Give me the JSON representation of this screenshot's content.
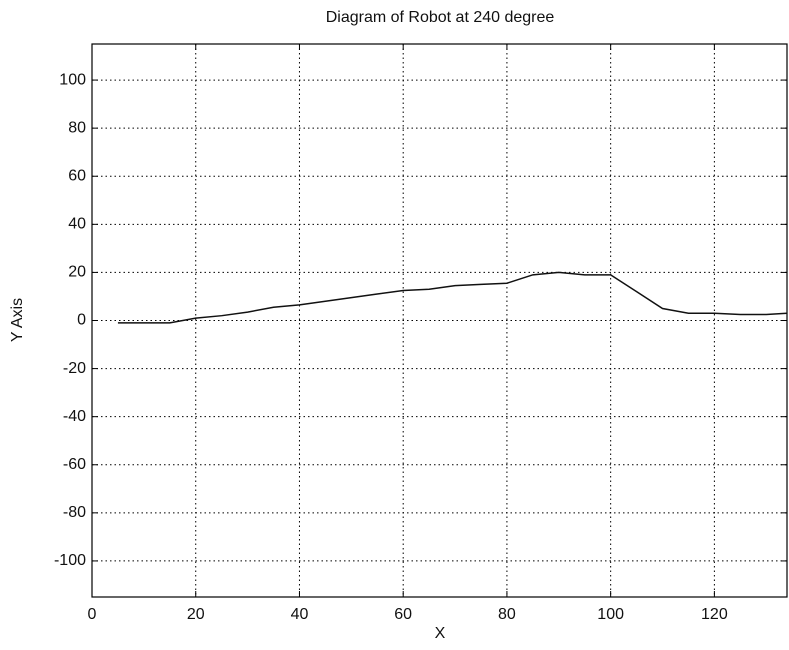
{
  "chart_data": {
    "type": "line",
    "title": "Diagram of Robot at 240 degree",
    "x_label": "X",
    "y_label": "Y Axis",
    "x": [
      5,
      10,
      15,
      20,
      25,
      30,
      35,
      40,
      45,
      50,
      55,
      60,
      65,
      70,
      75,
      80,
      85,
      90,
      95,
      100,
      105,
      110,
      115,
      120,
      125,
      130,
      134
    ],
    "values": [
      -1,
      -1,
      -1,
      1,
      2,
      3.5,
      5.5,
      6.5,
      8,
      9.5,
      11,
      12.5,
      13,
      14.5,
      15,
      15.5,
      19,
      20,
      19,
      19,
      12,
      5,
      3,
      3,
      2.5,
      2.5,
      3
    ],
    "color": "#111111",
    "xlim": [
      0,
      134
    ],
    "xticks": [
      0,
      20,
      40,
      60,
      80,
      100,
      120
    ],
    "ylim": [
      -115,
      115
    ],
    "yticks": [
      -100,
      -80,
      -60,
      -40,
      -20,
      0,
      20,
      40,
      60,
      80,
      100
    ],
    "grid": true
  }
}
